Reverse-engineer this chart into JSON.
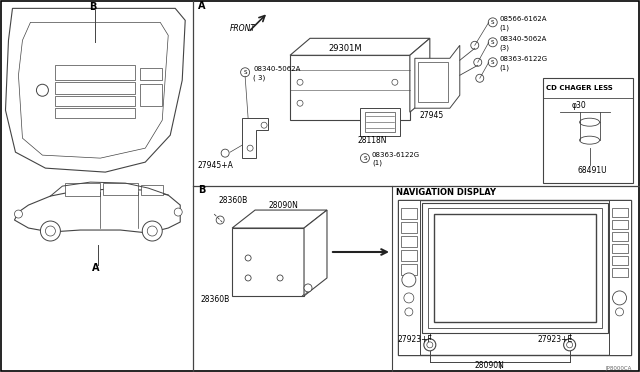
{
  "bg_color": "#ffffff",
  "lc": "#444444",
  "lc2": "#222222",
  "tc": "#000000",
  "fig_width": 6.4,
  "fig_height": 3.72,
  "labels": {
    "A": "A",
    "B": "B",
    "B2": "B",
    "FRONT": "FRONT",
    "29301M": "29301M",
    "27945": "27945",
    "28118N": "28118N",
    "27945A": "27945+A",
    "screw1_label": "08340-5062A",
    "screw1_qty": "( 3)",
    "screw2_label": "08566-6162A",
    "screw2_qty": "(1)",
    "screw3_label": "08340-5062A",
    "screw3_qty": "(3)",
    "screw4_label": "08363-6122G",
    "screw4_qty": "(1)",
    "screw5_label": "08363-6122G",
    "screw5_qty": "(1)",
    "CD_LESS": "CD CHAGER LESS",
    "phi30": "φ30",
    "68491U": "68491U",
    "28360B_top": "28360B",
    "28090N_top": "28090N",
    "28360B_bot": "28360B",
    "NAV_DISPLAY": "NAVIGATION DISPLAY",
    "27923F": "27923+F",
    "27923E": "27923+E",
    "28090N_bot": "28090N",
    "JP8000CA": "JP8000CA"
  }
}
